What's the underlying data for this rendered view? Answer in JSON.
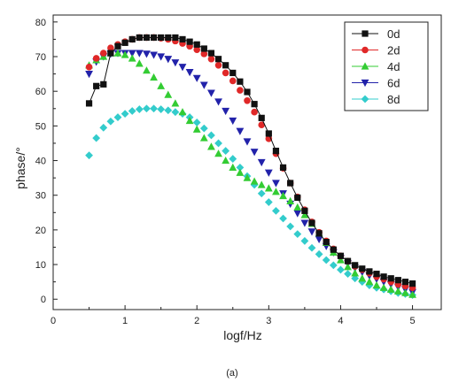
{
  "chart_data": {
    "type": "scatter",
    "xlabel": "logf/Hz",
    "ylabel": "phase/°",
    "caption": "(a)",
    "xlim": [
      0,
      5.4
    ],
    "ylim": [
      -3,
      82
    ],
    "xticks": [
      0,
      1,
      2,
      3,
      4,
      5
    ],
    "yticks": [
      0,
      10,
      20,
      30,
      40,
      50,
      60,
      70,
      80
    ],
    "grid": false,
    "legend_position": "top-right",
    "x": [
      0.5,
      0.6,
      0.7,
      0.8,
      0.9,
      1.0,
      1.1,
      1.2,
      1.3,
      1.4,
      1.5,
      1.6,
      1.7,
      1.8,
      1.9,
      2.0,
      2.1,
      2.2,
      2.3,
      2.4,
      2.5,
      2.6,
      2.7,
      2.8,
      2.9,
      3.0,
      3.1,
      3.2,
      3.3,
      3.4,
      3.5,
      3.6,
      3.7,
      3.8,
      3.9,
      4.0,
      4.1,
      4.2,
      4.3,
      4.4,
      4.5,
      4.6,
      4.7,
      4.8,
      4.9,
      5.0
    ],
    "series": [
      {
        "name": "0d",
        "color": "#111111",
        "marker": "square",
        "line": true,
        "values": [
          56.5,
          61.5,
          62,
          71,
          73,
          74,
          75,
          75.5,
          75.5,
          75.5,
          75.5,
          75.5,
          75.5,
          75,
          74.3,
          73.5,
          72.3,
          71,
          69.3,
          67.5,
          65.3,
          62.8,
          59.8,
          56.3,
          52.3,
          47.8,
          42.8,
          38,
          33.5,
          29.3,
          25.5,
          22,
          19,
          16.5,
          14.3,
          12.5,
          11,
          9.8,
          8.8,
          8,
          7.3,
          6.5,
          6,
          5.5,
          5,
          4.5
        ]
      },
      {
        "name": "2d",
        "color": "#e02828",
        "marker": "circle",
        "line": false,
        "values": [
          67,
          69.5,
          71,
          72.5,
          73.5,
          74.3,
          75,
          75.5,
          75.5,
          75.5,
          75.3,
          75,
          74.5,
          73.8,
          73,
          72,
          70.8,
          69.3,
          67.5,
          65.3,
          63,
          60.3,
          57.3,
          54,
          50.3,
          46.3,
          42,
          37.8,
          33.5,
          29.5,
          25.8,
          22.3,
          19.3,
          16.8,
          14.5,
          12.5,
          11,
          9.5,
          8.5,
          7.5,
          6.5,
          5.8,
          5,
          4.3,
          3.8,
          3.3
        ]
      },
      {
        "name": "4d",
        "color": "#33cc33",
        "marker": "triangle-up",
        "line": false,
        "values": [
          67.5,
          69,
          70,
          71,
          71,
          70.5,
          69.5,
          68,
          66,
          64,
          61.5,
          59,
          56.5,
          54,
          51.5,
          49,
          46.5,
          44,
          42,
          40,
          38,
          36.5,
          35,
          34,
          33,
          32,
          31,
          29.8,
          28.3,
          26.5,
          24.3,
          21.8,
          19,
          16.3,
          13.5,
          11.3,
          9.3,
          7.5,
          6,
          5,
          4,
          3.3,
          2.8,
          2.3,
          1.8,
          1.3
        ]
      },
      {
        "name": "6d",
        "color": "#2222aa",
        "marker": "triangle-down",
        "line": false,
        "values": [
          65,
          68.5,
          70,
          70.8,
          71,
          71,
          71,
          71,
          70.8,
          70.5,
          70,
          69.3,
          68.3,
          67,
          65.5,
          63.8,
          61.8,
          59.5,
          57,
          54.3,
          51.5,
          48.5,
          45.5,
          42.5,
          39.5,
          36.5,
          33.5,
          30.5,
          27.5,
          24.8,
          22,
          19.5,
          17.3,
          15.3,
          13.5,
          11.8,
          10.3,
          9,
          7.8,
          6.8,
          5.8,
          5,
          4.3,
          3.5,
          2.8,
          2
        ]
      },
      {
        "name": "8d",
        "color": "#33cccc",
        "marker": "diamond",
        "line": false,
        "values": [
          41.5,
          46.5,
          49.5,
          51.3,
          52.5,
          53.5,
          54.3,
          54.8,
          55,
          55,
          54.8,
          54.5,
          54,
          53.5,
          52.5,
          51,
          49.3,
          47.3,
          45,
          42.8,
          40.5,
          38,
          35.5,
          33,
          30.5,
          28,
          25.5,
          23.3,
          21,
          18.8,
          16.8,
          14.8,
          13,
          11.3,
          9.8,
          8.5,
          7.3,
          6,
          5,
          4,
          3.3,
          2.8,
          2.3,
          1.8,
          1.5,
          1.2
        ]
      }
    ]
  }
}
